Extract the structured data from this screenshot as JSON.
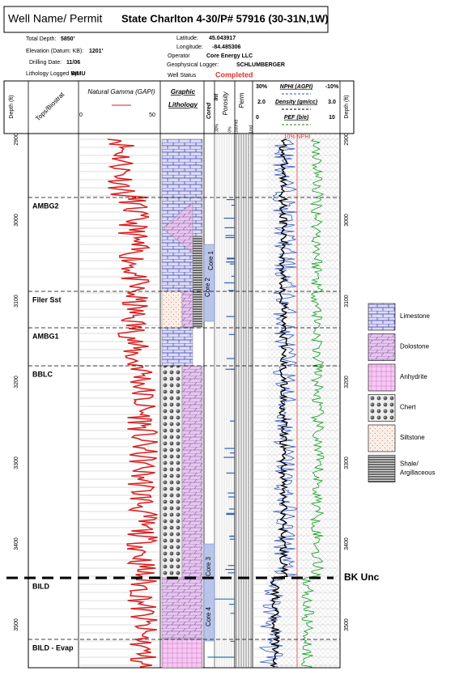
{
  "header": {
    "label": "Well Name/ Permit",
    "title": "State Charlton 4-30/P# 57916 (30-31N,1W)"
  },
  "info": [
    {
      "label": "Total Depth:",
      "value": "5850'"
    },
    {
      "label": "Elevation (Datum: KB):",
      "value": "1201'"
    },
    {
      "label": "Drilling Date:",
      "value": "11/06"
    },
    {
      "label": "Lithology Logged By:",
      "value": "WMU"
    },
    {
      "label": "Latitude:",
      "value": "45.043917"
    },
    {
      "label": "Longitude:",
      "value": "-84.485306"
    },
    {
      "label": "Operator",
      "value": "Core Energy LLC"
    },
    {
      "label": "Geophysical Logger:",
      "value": "SCHLUMBERGER"
    },
    {
      "label": "Well Status",
      "value": "Completed"
    }
  ],
  "columns": [
    "Depth (ft)",
    "Tops/Biostrat",
    "Natural Gamma (GAPI)",
    "0",
    "50",
    "Graphic",
    "Lithology",
    "Cored",
    "Int",
    "Porosity",
    "Perm",
    "30%",
    "NPHI (AGPI)",
    "-10%",
    "2.0",
    "Density (gm/cc)",
    "3.0",
    "0",
    "PEF (b/e)",
    "10",
    "Depth (ft)",
    "30%",
    "0%",
    "1000md",
    "1md"
  ],
  "nphi_marker": "10% NPHI",
  "depth_ticks": [
    2900,
    3000,
    3100,
    3200,
    3300,
    3400,
    3500
  ],
  "tops": [
    "AMBG2",
    "Filer Sst",
    "AMBG1",
    "BBLC",
    "BK Unc",
    "BILD",
    "BILD - Evap"
  ],
  "cores": [
    "Core 1",
    "Core 2",
    "Core 3",
    "Core 4"
  ],
  "legend": [
    "Limestone",
    "Dolostone",
    "Anhydrite",
    "Chert",
    "Siltstone",
    "Shale/ Argillaceous"
  ]
}
